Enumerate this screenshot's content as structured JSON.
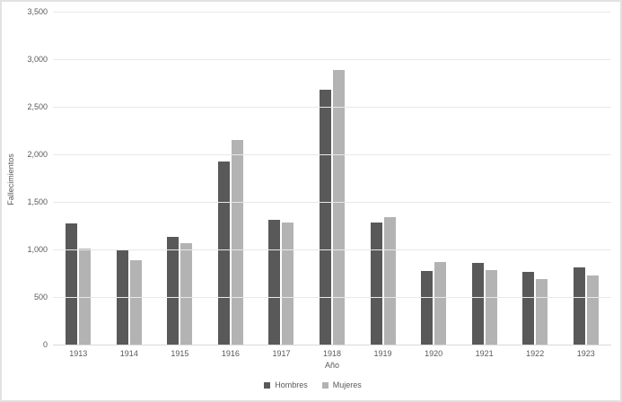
{
  "chart_data": {
    "type": "bar",
    "title": "",
    "xlabel": "Año",
    "ylabel": "Fallecimientos",
    "categories": [
      "1913",
      "1914",
      "1915",
      "1916",
      "1917",
      "1918",
      "1919",
      "1920",
      "1921",
      "1922",
      "1923"
    ],
    "series": [
      {
        "name": "Hombres",
        "color": "#595959",
        "values": [
          1270,
          990,
          1130,
          1920,
          1310,
          2680,
          1280,
          770,
          860,
          760,
          810
        ]
      },
      {
        "name": "Mujeres",
        "color": "#b3b3b3",
        "values": [
          1010,
          890,
          1070,
          2150,
          1280,
          2890,
          1340,
          870,
          780,
          690,
          730
        ]
      }
    ],
    "ylim": [
      0,
      3500
    ],
    "ytick_interval": 500,
    "ytick_labels": [
      "0",
      "500",
      "1,000",
      "1,500",
      "2,000",
      "2,500",
      "3,000",
      "3,500"
    ],
    "grid": true,
    "legend_position": "bottom"
  },
  "colors": {
    "background": "#ffffff",
    "border": "#e2e2e2",
    "gridline": "#e8e8e8",
    "axis_line": "#d9d9d9",
    "text": "#595959",
    "series_hombres": "#595959",
    "series_mujeres": "#b3b3b3"
  }
}
